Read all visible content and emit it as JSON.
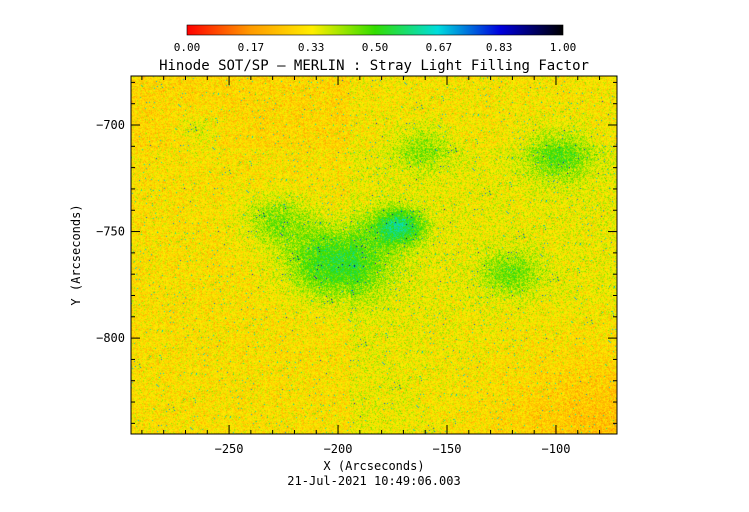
{
  "chart_data": {
    "type": "heatmap",
    "title": "Hinode SOT/SP – MERLIN : Stray Light Filling Factor",
    "xlabel": "X (Arcseconds)",
    "ylabel": "Y (Arcseconds)",
    "footer": "21-Jul-2021 10:49:06.003",
    "xlim": [
      -295,
      -72
    ],
    "ylim": [
      -845,
      -677
    ],
    "x_ticks": [
      {
        "value": -250,
        "label": "−250"
      },
      {
        "value": -200,
        "label": "−200"
      },
      {
        "value": -150,
        "label": "−150"
      },
      {
        "value": -100,
        "label": "−100"
      }
    ],
    "y_ticks": [
      {
        "value": -700,
        "label": "−700"
      },
      {
        "value": -750,
        "label": "−750"
      },
      {
        "value": -800,
        "label": "−800"
      }
    ],
    "colorbar": {
      "range": [
        0,
        1
      ],
      "tick_values": [
        0.0,
        0.17,
        0.33,
        0.5,
        0.67,
        0.83,
        1.0
      ],
      "tick_labels": [
        "0.00",
        "0.17",
        "0.33",
        "0.50",
        "0.67",
        "0.83",
        "1.00"
      ],
      "colormap": [
        "#ff0000",
        "#ff9900",
        "#ffee00",
        "#33dd00",
        "#00dddd",
        "#0000dd",
        "#000000"
      ]
    },
    "grid": false
  }
}
